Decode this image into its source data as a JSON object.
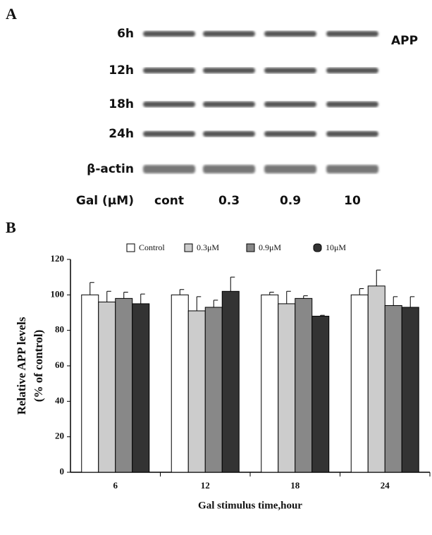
{
  "panel_a": {
    "label": "A",
    "rows": [
      "6h",
      "12h",
      "18h",
      "24h",
      "β-actin"
    ],
    "protein": "APP",
    "concentration_label": "Gal (μM)",
    "columns": [
      "cont",
      "0.3",
      "0.9",
      "10"
    ]
  },
  "chart_data": {
    "type": "bar",
    "label": "B",
    "categories": [
      "6",
      "12",
      "18",
      "24"
    ],
    "series": [
      {
        "name": "Control",
        "color": "#ffffff",
        "values": [
          100,
          100,
          100,
          100
        ],
        "errors": [
          7,
          3,
          1.5,
          3.5
        ]
      },
      {
        "name": "0.3μM",
        "color": "#cccccc",
        "values": [
          96,
          91,
          95,
          105
        ],
        "errors": [
          6,
          8,
          7,
          9
        ]
      },
      {
        "name": "0.9μM",
        "color": "#888888",
        "values": [
          98,
          93,
          98,
          94
        ],
        "errors": [
          3.5,
          4,
          1.5,
          5
        ]
      },
      {
        "name": "10μM",
        "color": "#333333",
        "values": [
          95,
          102,
          88,
          93
        ],
        "errors": [
          5.5,
          8,
          0.5,
          6
        ]
      }
    ],
    "ylabel": [
      "Relative APP levels",
      "(% of control)"
    ],
    "xlabel": "Gal stimulus time,hour",
    "ylim": [
      0,
      120
    ],
    "yticks": [
      0,
      20,
      40,
      60,
      80,
      100,
      120
    ],
    "legend": "top"
  }
}
